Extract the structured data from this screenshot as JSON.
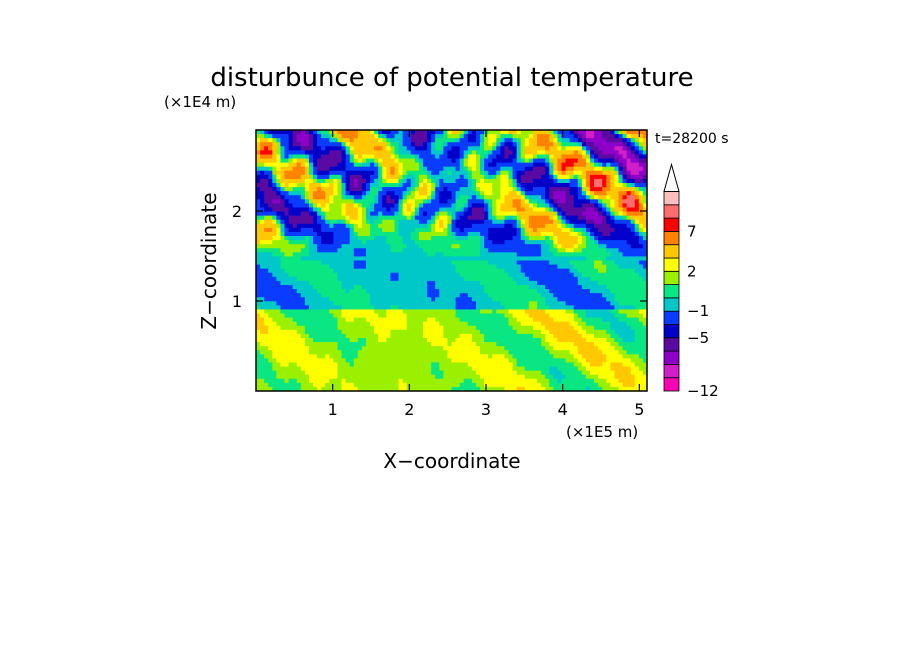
{
  "chart_data": {
    "type": "heatmap",
    "title": "disturbunce of potential temperature",
    "time_label": "t=28200 s",
    "xlabel": "X−coordinate",
    "ylabel": "Z−coordinate",
    "x_unit": "(×1E5 m)",
    "y_unit": "(×1E4 m)",
    "xlim": [
      0,
      5.1
    ],
    "ylim": [
      0,
      2.9
    ],
    "x_ticks": [
      1,
      2,
      3,
      4,
      5
    ],
    "x_tick_labels": [
      "1",
      "2",
      "3",
      "4",
      "5"
    ],
    "y_ticks": [
      1,
      2
    ],
    "y_tick_labels": [
      "1",
      "2"
    ],
    "colorbar": {
      "levels": [
        -12,
        -11,
        -9,
        -7,
        -5,
        -3,
        -1,
        0,
        1,
        2,
        3,
        5,
        7,
        9,
        11
      ],
      "colors": [
        "#ff00b4",
        "#d21ec8",
        "#8c00c8",
        "#5a0aa0",
        "#0000c8",
        "#0a3cff",
        "#00c8c8",
        "#0ae682",
        "#9bf000",
        "#ffff00",
        "#ffc800",
        "#ff8200",
        "#ff0000",
        "#ff6e6e",
        "#ffbebe"
      ],
      "tick_values": [
        -12,
        -5,
        -1,
        2,
        7
      ],
      "tick_labels": [
        "−12",
        "−5",
        "−1",
        "2",
        "7"
      ],
      "extend": "max"
    },
    "field_description": {
      "lower_layer_0_to_0.9": "weak positive perturbations, 0 to 2",
      "middle_band_0.9_to_1.5": "near zero, −1 to 0",
      "upper_layer_1.5_to_2.9": "wave pattern alternating about −12 to +9"
    }
  }
}
